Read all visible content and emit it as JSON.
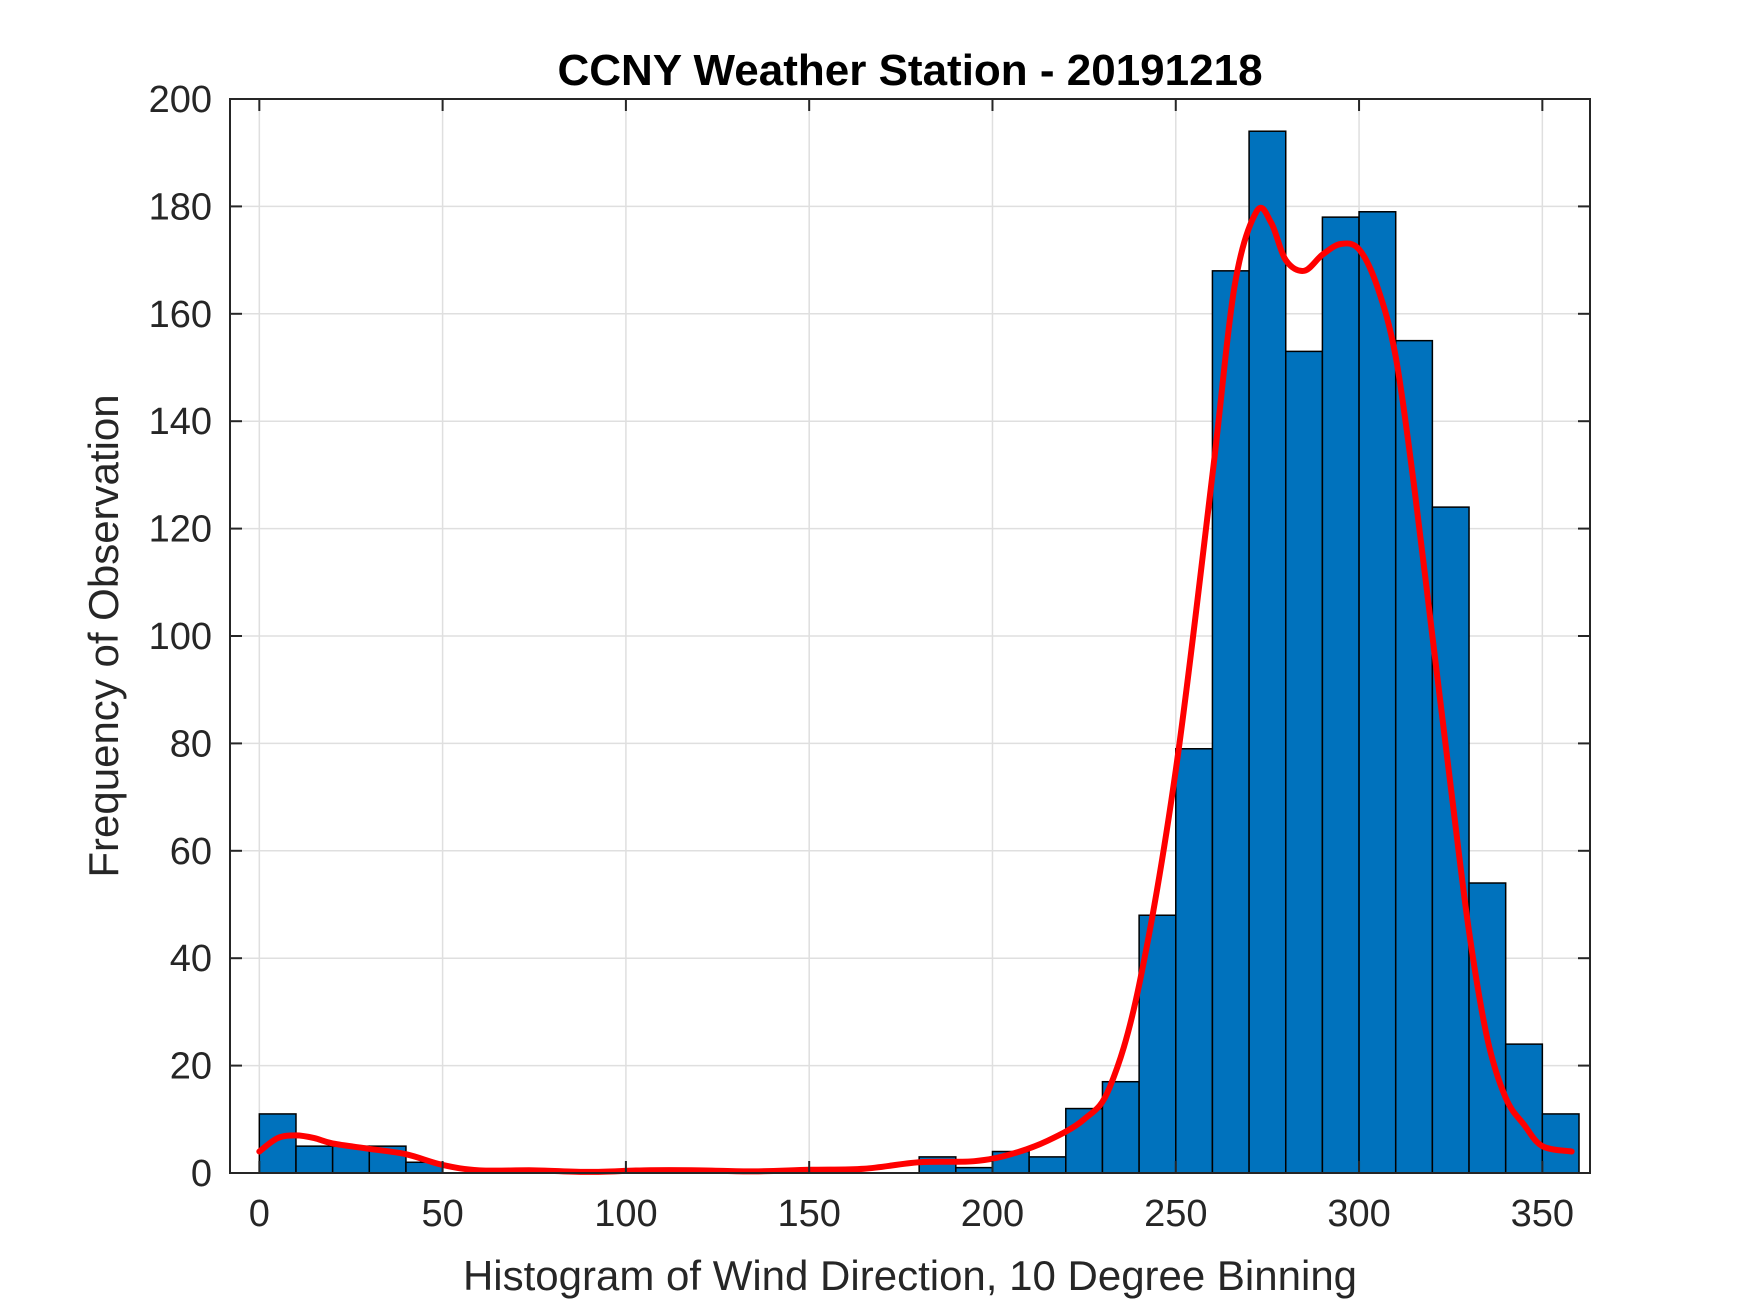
{
  "chart_data": {
    "type": "bar",
    "title": "CCNY Weather Station - 20191218",
    "xlabel": "Histogram of Wind Direction, 10 Degree Binning",
    "ylabel": "Frequency of Observation",
    "xlim": [
      -8,
      363
    ],
    "ylim": [
      0,
      200
    ],
    "xticks": [
      0,
      50,
      100,
      150,
      200,
      250,
      300,
      350
    ],
    "yticks": [
      0,
      20,
      40,
      60,
      80,
      100,
      120,
      140,
      160,
      180,
      200
    ],
    "grid": true,
    "bin_width": 10,
    "bin_edges": [
      0,
      10,
      20,
      30,
      40,
      50,
      60,
      70,
      80,
      90,
      100,
      110,
      120,
      130,
      140,
      150,
      160,
      170,
      180,
      190,
      200,
      210,
      220,
      230,
      240,
      250,
      260,
      270,
      280,
      290,
      300,
      310,
      320,
      330,
      340,
      350,
      360
    ],
    "values": [
      11,
      5,
      5,
      5,
      2,
      0,
      0,
      0,
      0,
      0,
      0,
      0,
      0,
      0,
      0,
      0,
      0,
      0,
      3,
      1,
      4,
      3,
      12,
      17,
      48,
      79,
      168,
      194,
      153,
      178,
      179,
      155,
      124,
      54,
      24,
      11
    ],
    "bar_color": "#0072BD",
    "edge_color": "#000000",
    "fit_curve": {
      "type": "line",
      "color": "#FF0000",
      "x": [
        0,
        5,
        10,
        15,
        20,
        30,
        40,
        50,
        60,
        75,
        90,
        105,
        120,
        135,
        150,
        165,
        180,
        195,
        205,
        215,
        225,
        232,
        240,
        250,
        260,
        266,
        272,
        276,
        280,
        285,
        290,
        295,
        300,
        305,
        310,
        315,
        320,
        325,
        330,
        335,
        340,
        345,
        350,
        358
      ],
      "y": [
        4,
        6.5,
        7,
        6.5,
        5.5,
        4.5,
        3.5,
        1.5,
        0.5,
        0.5,
        0.2,
        0.5,
        0.5,
        0.3,
        0.6,
        0.8,
        2,
        2.2,
        3.5,
        6,
        10,
        16,
        35,
        75,
        130,
        165,
        179,
        177,
        170,
        168,
        171,
        173,
        172,
        165,
        152,
        128,
        100,
        72,
        45,
        25,
        14,
        9,
        5,
        4
      ]
    }
  }
}
